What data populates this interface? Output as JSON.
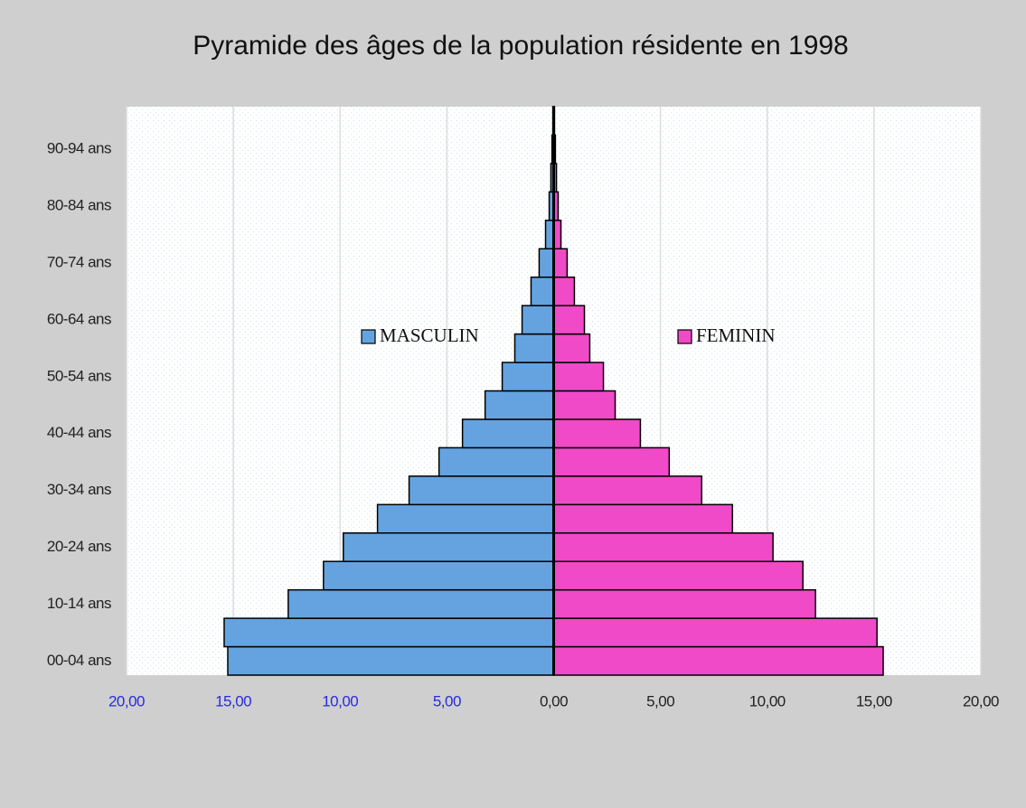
{
  "chart_data": {
    "type": "pyramid",
    "title": "Pyramide des âges de la population résidente en 1998",
    "categories": [
      "00-04 ans",
      null,
      "10-14 ans",
      null,
      "20-24 ans",
      null,
      "30-34 ans",
      null,
      "40-44 ans",
      null,
      "50-54 ans",
      null,
      "60-64 ans",
      null,
      "70-74 ans",
      null,
      "80-84 ans",
      null,
      "90-94 ans",
      null
    ],
    "series": [
      {
        "name": "MASCULIN",
        "color": "#64a3e0",
        "values": [
          -15.26,
          -15.43,
          -12.43,
          -10.78,
          -9.85,
          -8.25,
          -6.77,
          -5.37,
          -4.27,
          -3.21,
          -2.41,
          -1.82,
          -1.48,
          -1.06,
          -0.68,
          -0.38,
          -0.21,
          -0.13,
          -0.08,
          -0.04
        ]
      },
      {
        "name": "FEMININ",
        "color": "#f04ac8",
        "values": [
          15.43,
          15.14,
          12.26,
          11.67,
          10.27,
          8.37,
          6.93,
          5.41,
          4.06,
          2.88,
          2.33,
          1.69,
          1.44,
          0.97,
          0.63,
          0.34,
          0.21,
          0.13,
          0.08,
          0.04
        ]
      }
    ],
    "xlim": [
      -20,
      20
    ],
    "xticks": [
      {
        "value": -20,
        "label": "20,00"
      },
      {
        "value": -15,
        "label": "15,00"
      },
      {
        "value": -10,
        "label": "10,00"
      },
      {
        "value": -5,
        "label": "5,00"
      },
      {
        "value": 0,
        "label": "0,00"
      },
      {
        "value": 5,
        "label": "5,00"
      },
      {
        "value": 10,
        "label": "10,00"
      },
      {
        "value": 15,
        "label": "15,00"
      },
      {
        "value": 20,
        "label": "20,00"
      }
    ],
    "negative_tick_color": "#2a2ae0",
    "grid": true
  }
}
